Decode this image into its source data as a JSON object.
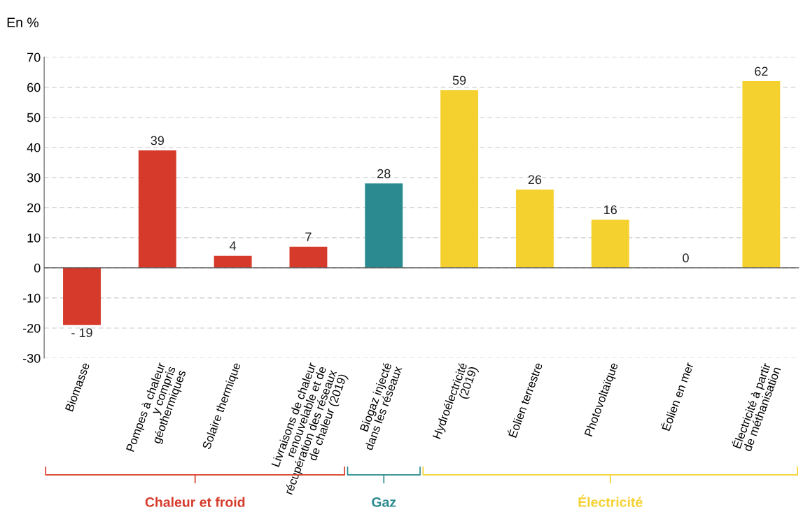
{
  "chart_data": {
    "type": "bar",
    "ylabel": "En %",
    "categories": [
      "Biomasse",
      "Pompes à chaleur\ny compris\ngéothermiques",
      "Solaire thermique",
      "Livraisons de chaleur\nrenouvelable et de\nrécupération des réseaux\nde chaleur (2019)",
      "Biogaz injecté\ndans les réseaux",
      "Hydroélectricité\n(2019)",
      "Éolien terrestre",
      "Photovoltaïque",
      "Éolien en mer",
      "Électricité à partir\nde méthanisation"
    ],
    "values": [
      -19,
      39,
      4,
      7,
      28,
      59,
      26,
      16,
      0,
      62
    ],
    "colors": [
      "#d63a2a",
      "#d63a2a",
      "#d63a2a",
      "#d63a2a",
      "#2a8a8f",
      "#f5d130",
      "#f5d130",
      "#f5d130",
      "#f5d130",
      "#f5d130"
    ],
    "data_labels": true,
    "ylim": [
      -30,
      70
    ],
    "yticks": [
      -30,
      -20,
      -10,
      0,
      10,
      20,
      30,
      40,
      50,
      60,
      70
    ],
    "grid": "y",
    "annotations": [
      "Chaleur et froid",
      "Gaz",
      "Électricité"
    ]
  }
}
